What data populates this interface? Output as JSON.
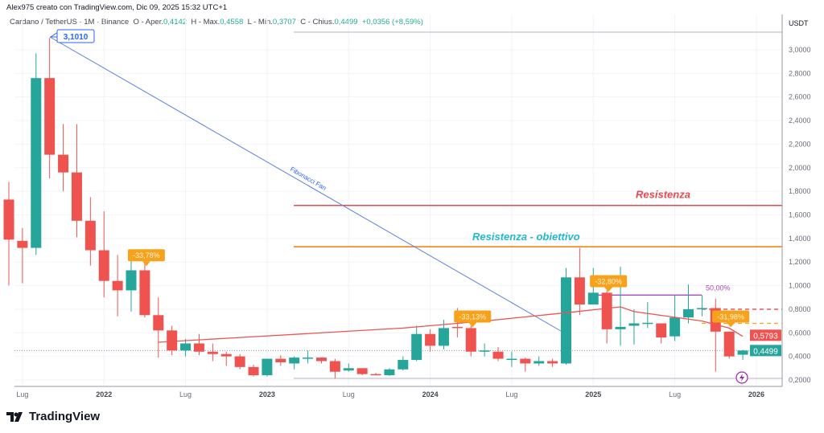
{
  "header": {
    "author_line": "Alex975 creato con TradingView.com, Dic 09, 2025 15:32 UTC+1"
  },
  "legend": {
    "symbol": "Cardano / TetherUS · 1M · Binance",
    "open_label": "O - Aper.",
    "open": "0,4142",
    "high_label": "H - Max.",
    "high": "0,4558",
    "low_label": "L - Min.",
    "low": "0,3707",
    "close_label": "C - Chius.",
    "close": "0,4499",
    "change": "+0,0356 (+8,59%)"
  },
  "brand": {
    "logo_text": "TradingView"
  },
  "colors": {
    "up": "#26a69a",
    "down": "#ef5350",
    "ma": "#ef5350",
    "fib": "#5b7fe0",
    "resist": "#e8484f",
    "target": "#f57c00",
    "target_text": "#22b8cf",
    "measure": "#f7a21b",
    "fifty": "#ab47bc"
  },
  "chart_data": {
    "type": "candlestick",
    "currency": "USDT",
    "interval": "monthly",
    "ylim": [
      0.2,
      3.1
    ],
    "grid": true,
    "y_ticks": [
      "3,0000",
      "2,8000",
      "2,6000",
      "2,4000",
      "2,2000",
      "2,0000",
      "1,8000",
      "1,6000",
      "1,4000",
      "1,2000",
      "1,0000",
      "0,8000",
      "0,6000",
      "0,4000",
      "0,2000"
    ],
    "x_ticks": [
      {
        "label": "Lug",
        "i": 1
      },
      {
        "label": "2022",
        "i": 7,
        "year": true
      },
      {
        "label": "Lug",
        "i": 13
      },
      {
        "label": "2023",
        "i": 19,
        "year": true
      },
      {
        "label": "Lug",
        "i": 25
      },
      {
        "label": "2024",
        "i": 31,
        "year": true
      },
      {
        "label": "Lug",
        "i": 37
      },
      {
        "label": "2025",
        "i": 43,
        "year": true
      },
      {
        "label": "Lug",
        "i": 49
      },
      {
        "label": "2026",
        "i": 55,
        "year": true
      }
    ],
    "start_month": "2021-06",
    "ohlc": [
      [
        1.73,
        1.88,
        1.0,
        1.39
      ],
      [
        1.38,
        1.49,
        1.02,
        1.32
      ],
      [
        1.32,
        2.97,
        1.26,
        2.76
      ],
      [
        2.76,
        3.1,
        1.91,
        2.11
      ],
      [
        2.11,
        2.37,
        1.8,
        1.96
      ],
      [
        1.96,
        2.37,
        1.41,
        1.55
      ],
      [
        1.55,
        1.75,
        1.17,
        1.3
      ],
      [
        1.3,
        1.63,
        0.9,
        1.04
      ],
      [
        1.04,
        1.26,
        0.74,
        0.96
      ],
      [
        0.96,
        1.24,
        0.78,
        1.13
      ],
      [
        1.13,
        1.24,
        0.73,
        0.75
      ],
      [
        0.75,
        0.9,
        0.39,
        0.62
      ],
      [
        0.62,
        0.66,
        0.41,
        0.45
      ],
      [
        0.45,
        0.55,
        0.4,
        0.51
      ],
      [
        0.51,
        0.59,
        0.41,
        0.44
      ],
      [
        0.44,
        0.51,
        0.36,
        0.42
      ],
      [
        0.42,
        0.44,
        0.32,
        0.4
      ],
      [
        0.4,
        0.42,
        0.29,
        0.31
      ],
      [
        0.31,
        0.33,
        0.23,
        0.24
      ],
      [
        0.24,
        0.38,
        0.23,
        0.38
      ],
      [
        0.38,
        0.41,
        0.32,
        0.35
      ],
      [
        0.34,
        0.4,
        0.29,
        0.39
      ],
      [
        0.39,
        0.45,
        0.34,
        0.39
      ],
      [
        0.39,
        0.39,
        0.34,
        0.36
      ],
      [
        0.36,
        0.38,
        0.21,
        0.27
      ],
      [
        0.28,
        0.34,
        0.27,
        0.3
      ],
      [
        0.3,
        0.3,
        0.24,
        0.25
      ],
      [
        0.25,
        0.26,
        0.24,
        0.247
      ],
      [
        0.24,
        0.3,
        0.235,
        0.29
      ],
      [
        0.29,
        0.4,
        0.28,
        0.37
      ],
      [
        0.37,
        0.66,
        0.36,
        0.59
      ],
      [
        0.59,
        0.63,
        0.44,
        0.49
      ],
      [
        0.49,
        0.71,
        0.46,
        0.64
      ],
      [
        0.65,
        0.81,
        0.56,
        0.64
      ],
      [
        0.64,
        0.66,
        0.4,
        0.44
      ],
      [
        0.44,
        0.51,
        0.4,
        0.45
      ],
      [
        0.44,
        0.48,
        0.36,
        0.38
      ],
      [
        0.38,
        0.44,
        0.31,
        0.38
      ],
      [
        0.38,
        0.39,
        0.27,
        0.34
      ],
      [
        0.34,
        0.4,
        0.32,
        0.36
      ],
      [
        0.36,
        0.38,
        0.31,
        0.34
      ],
      [
        0.34,
        1.15,
        0.33,
        1.07
      ],
      [
        1.07,
        1.32,
        0.75,
        0.84
      ],
      [
        0.84,
        1.15,
        0.84,
        0.94
      ],
      [
        0.94,
        0.96,
        0.51,
        0.63
      ],
      [
        0.63,
        1.16,
        0.49,
        0.65
      ],
      [
        0.66,
        0.8,
        0.5,
        0.68
      ],
      [
        0.68,
        0.86,
        0.64,
        0.685
      ],
      [
        0.68,
        0.68,
        0.51,
        0.56
      ],
      [
        0.57,
        0.92,
        0.53,
        0.73
      ],
      [
        0.73,
        1.01,
        0.68,
        0.8
      ],
      [
        0.8,
        0.92,
        0.74,
        0.81
      ],
      [
        0.81,
        0.89,
        0.27,
        0.61
      ],
      [
        0.61,
        0.61,
        0.38,
        0.4
      ],
      [
        0.4142,
        0.4558,
        0.3707,
        0.4499
      ]
    ],
    "moving_average": [
      [
        11,
        0.52
      ],
      [
        17,
        0.56
      ],
      [
        23,
        0.6
      ],
      [
        29,
        0.64
      ],
      [
        35,
        0.7
      ],
      [
        41,
        0.77
      ],
      [
        45,
        0.82
      ],
      [
        46,
        0.78
      ],
      [
        51,
        0.7
      ],
      [
        53,
        0.64
      ],
      [
        54,
        0.57
      ]
    ],
    "last_price_labels": [
      {
        "value": "0,5793",
        "price": 0.5793,
        "kind": "ma"
      },
      {
        "value": "0,4499",
        "price": 0.4499,
        "kind": "close"
      }
    ],
    "annotations": {
      "peak_label": "3,1010",
      "fib_fan_label": "Fibonacci Fan",
      "resistance_label": "Resistenza",
      "resistance_price": 1.68,
      "target_label": "Resistenza - obiettivo",
      "target_price": 1.33,
      "drawdowns": [
        {
          "text": "-33,78%",
          "i": 10,
          "price": 1.2
        },
        {
          "text": "-33,13%",
          "i": 34,
          "price": 0.68
        },
        {
          "text": "-32,80%",
          "i": 44,
          "price": 0.98
        },
        {
          "text": "-31,98%",
          "i": 53,
          "price": 0.68
        }
      ],
      "fifty_label": "50,00%",
      "fifty_price": 0.92,
      "dashed_levels": [
        0.8,
        0.68
      ]
    }
  }
}
